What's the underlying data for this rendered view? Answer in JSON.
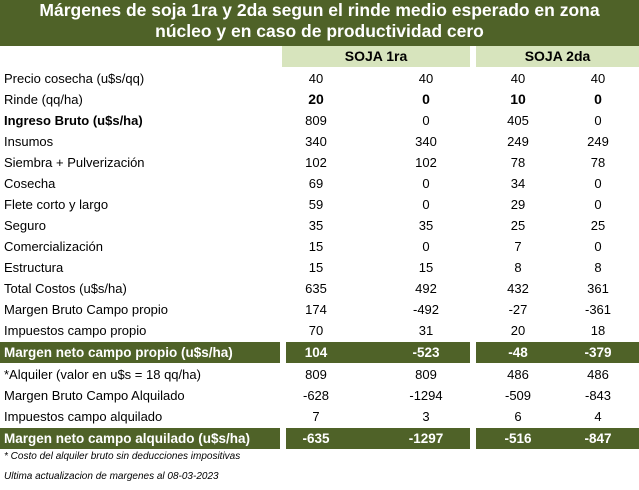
{
  "title": {
    "line1": "Márgenes de soja 1ra y 2da segun el rinde medio esperado en zona",
    "line2": "núcleo y en caso de productividad cero"
  },
  "headers": {
    "soja1": "SOJA 1ra",
    "soja2": "SOJA 2da"
  },
  "rows": [
    {
      "label": "Precio cosecha (u$s/qq)",
      "v": [
        "40",
        "40",
        "40",
        "40"
      ]
    },
    {
      "label": "Rinde (qq/ha)",
      "v": [
        "20",
        "0",
        "10",
        "0"
      ]
    },
    {
      "label": "Ingreso Bruto (u$s/ha)",
      "v": [
        "809",
        "0",
        "405",
        "0"
      ]
    },
    {
      "label": "Insumos",
      "v": [
        "340",
        "340",
        "249",
        "249"
      ]
    },
    {
      "label": "Siembra + Pulverización",
      "v": [
        "102",
        "102",
        "78",
        "78"
      ]
    },
    {
      "label": "Cosecha",
      "v": [
        "69",
        "0",
        "34",
        "0"
      ]
    },
    {
      "label": "Flete corto y largo",
      "v": [
        "59",
        "0",
        "29",
        "0"
      ]
    },
    {
      "label": "Seguro",
      "v": [
        "35",
        "35",
        "25",
        "25"
      ]
    },
    {
      "label": "Comercialización",
      "v": [
        "15",
        "0",
        "7",
        "0"
      ]
    },
    {
      "label": "Estructura",
      "v": [
        "15",
        "15",
        "8",
        "8"
      ]
    },
    {
      "label": "Total Costos (u$s/ha)",
      "v": [
        "635",
        "492",
        "432",
        "361"
      ]
    },
    {
      "label": "Margen Bruto Campo propio",
      "v": [
        "174",
        "-492",
        "-27",
        "-361"
      ]
    },
    {
      "label": "Impuestos  campo propio",
      "v": [
        "70",
        "31",
        "20",
        "18"
      ]
    },
    {
      "label": "Margen neto campo propio (u$s/ha)",
      "v": [
        "104",
        "-523",
        "-48",
        "-379"
      ]
    },
    {
      "label": "*Alquiler (valor en u$s = 18 qq/ha)",
      "v": [
        "809",
        "809",
        "486",
        "486"
      ]
    },
    {
      "label": "Margen Bruto Campo Alquilado",
      "v": [
        "-628",
        "-1294",
        "-509",
        "-843"
      ]
    },
    {
      "label": "Impuestos campo alquilado",
      "v": [
        "7",
        "3",
        "6",
        "4"
      ]
    },
    {
      "label": "Margen neto campo alquilado (u$s/ha)",
      "v": [
        "-635",
        "-1297",
        "-516",
        "-847"
      ]
    }
  ],
  "notes": {
    "n1": "* Costo del alquiler bruto sin deducciones impositivas",
    "n2": "Ultima actualizacion de margenes al 08-03-2023"
  },
  "colors": {
    "dark_green": "#4f6228",
    "light_green": "#d7e4bd"
  }
}
